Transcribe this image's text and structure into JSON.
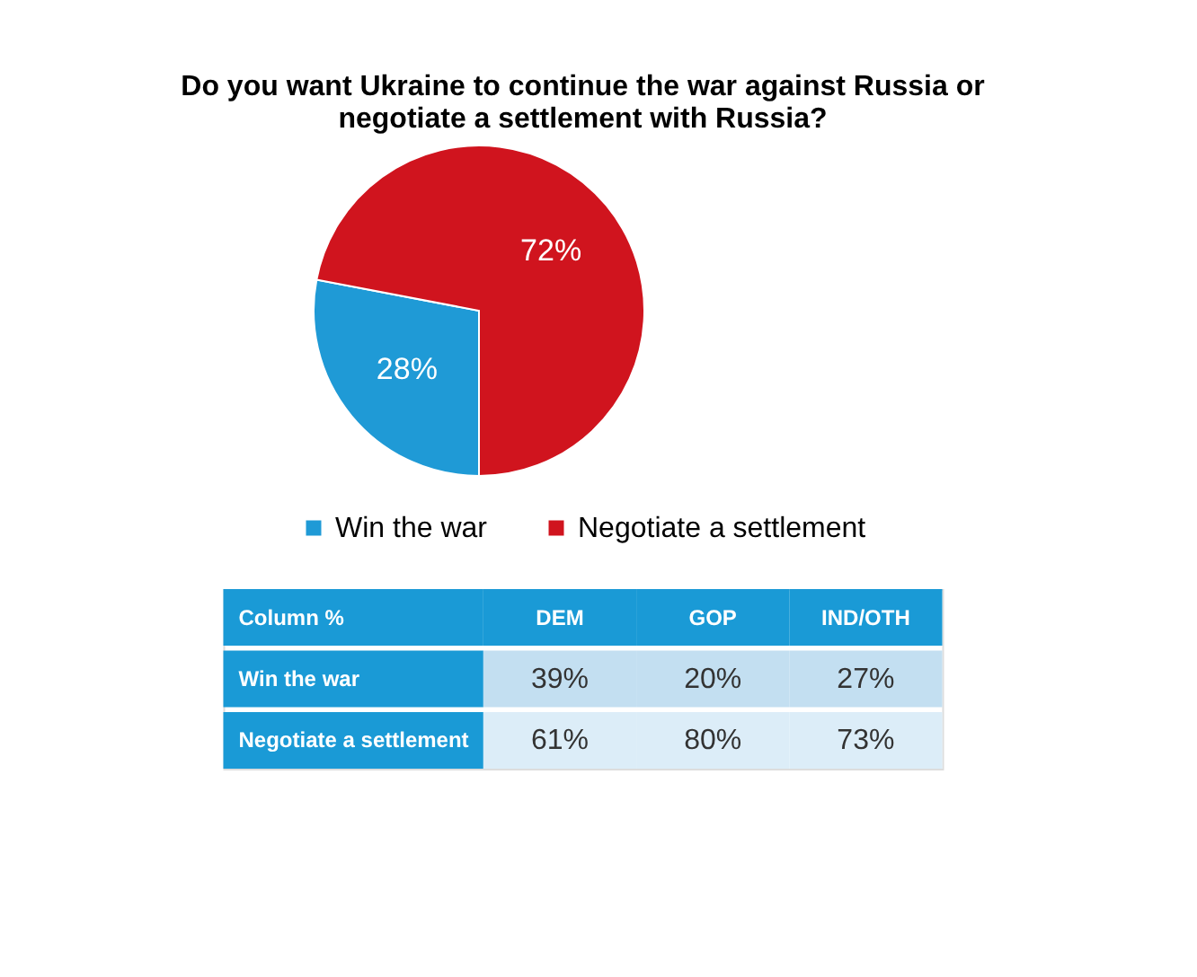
{
  "chart_data": [
    {
      "type": "pie",
      "title": "Do you want Ukraine to continue the war against Russia or negotiate a settlement with Russia?",
      "categories": [
        "Win the war",
        "Negotiate a settlement"
      ],
      "values": [
        28,
        72
      ],
      "colors": [
        "#1f9ad6",
        "#d0141e"
      ],
      "value_labels": [
        "28%",
        "72%"
      ],
      "legend": "bottom"
    },
    {
      "type": "heatmap",
      "ylabel": "Column %",
      "categories": [
        "DEM",
        "GOP",
        "IND/OTH"
      ],
      "y_categories": [
        "Win the war",
        "Negotiate a settlement"
      ],
      "cells": [
        [
          39,
          20,
          27
        ],
        [
          61,
          80,
          73
        ]
      ],
      "cell_labels": [
        [
          "39%",
          "20%",
          "27%"
        ],
        [
          "61%",
          "80%",
          "73%"
        ]
      ]
    }
  ]
}
